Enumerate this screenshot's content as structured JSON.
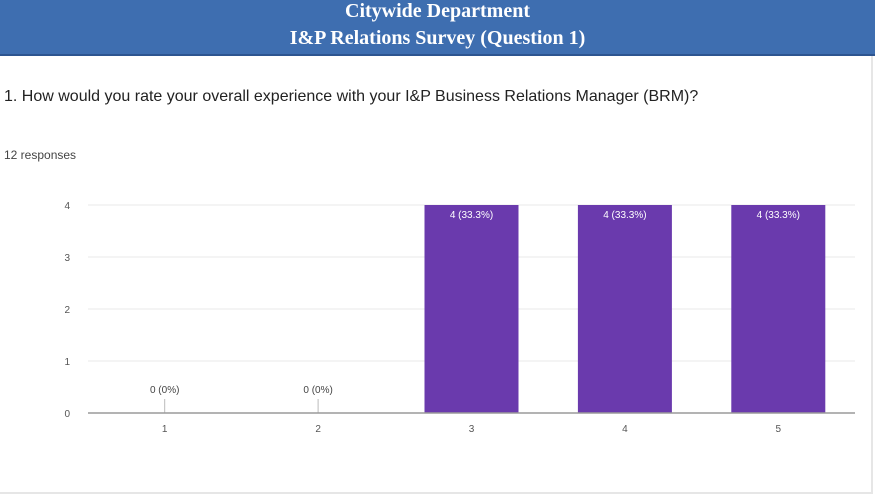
{
  "header": {
    "line1": "Citywide Department",
    "line2": "I&P Relations Survey (Question 1)"
  },
  "question": {
    "text": "1. How would you rate your overall experience with your I&P Business Relations Manager (BRM)?",
    "responses": "12 responses"
  },
  "colors": {
    "header_bg": "#3e6eb0",
    "bar": "#6a3aad"
  },
  "chart_data": {
    "type": "bar",
    "title": "",
    "xlabel": "",
    "ylabel": "",
    "categories": [
      "1",
      "2",
      "3",
      "4",
      "5"
    ],
    "values": [
      0,
      0,
      4,
      4,
      4
    ],
    "data_labels": [
      "0 (0%)",
      "0 (0%)",
      "4 (33.3%)",
      "4 (33.3%)",
      "4 (33.3%)"
    ],
    "y_ticks": [
      "0",
      "1",
      "2",
      "3",
      "4"
    ],
    "ylim": [
      0,
      4
    ],
    "grid": true,
    "legend": "none"
  }
}
